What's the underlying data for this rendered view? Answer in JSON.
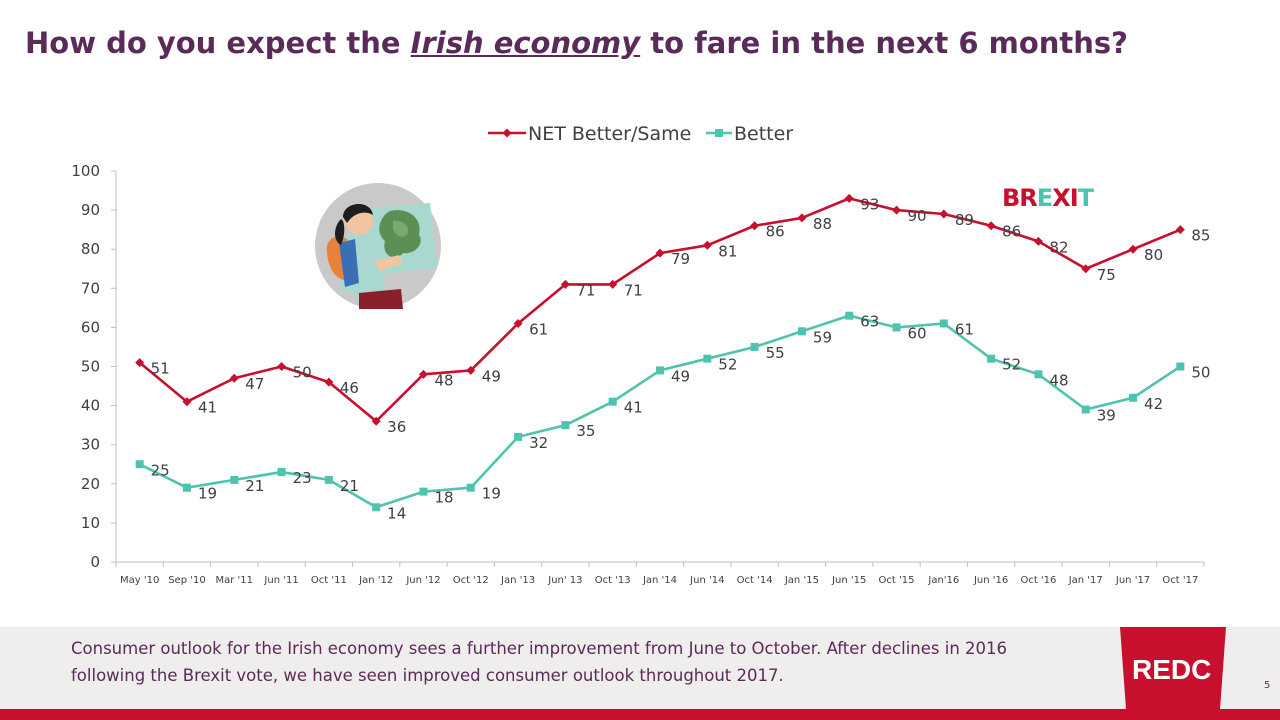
{
  "slide": {
    "title_before": "How do you expect the ",
    "title_emph": "Irish economy",
    "title_after": " to fare in the next 6 months?",
    "footer_text": "Consumer outlook for the Irish economy sees a further improvement from June to October. After declines in 2016 following the Brexit vote, we have seen improved consumer outlook throughout 2017.",
    "page_number": "5",
    "logo_text": "REDC",
    "brexit_letters": [
      "B",
      "R",
      "E",
      "X",
      "I",
      "T"
    ]
  },
  "colors": {
    "title": "#5a2a59",
    "net_series": "#c8102e",
    "better_series": "#4ec3ae",
    "axis": "#bfbfbf",
    "brand_red": "#c8102e",
    "footer_bg": "#efeeec",
    "brexit": [
      "#c8102e",
      "#c8102e",
      "#4ec3ae",
      "#c8102e",
      "#c8102e",
      "#4ec3ae"
    ]
  },
  "chart_data": {
    "type": "line",
    "categories": [
      "May '10",
      "Sep '10",
      "Mar '11",
      "Jun '11",
      "Oct '11",
      "Jan '12",
      "Jun '12",
      "Oct '12",
      "Jan '13",
      "Jun' 13",
      "Oct '13",
      "Jan '14",
      "Jun '14",
      "Oct '14",
      "Jan '15",
      "Jun '15",
      "Oct '15",
      "Jan'16",
      "Jun '16",
      "Oct '16",
      "Jan '17",
      "Jun '17",
      "Oct '17"
    ],
    "series": [
      {
        "name": "NET Better/Same",
        "marker": "diamond",
        "values": [
          51,
          41,
          47,
          50,
          46,
          36,
          48,
          49,
          61,
          71,
          71,
          79,
          81,
          86,
          88,
          93,
          90,
          89,
          86,
          82,
          75,
          80,
          85
        ]
      },
      {
        "name": "Better",
        "marker": "square",
        "values": [
          25,
          19,
          21,
          23,
          21,
          14,
          18,
          19,
          32,
          35,
          41,
          49,
          52,
          55,
          59,
          63,
          60,
          61,
          52,
          48,
          39,
          42,
          50
        ]
      }
    ],
    "ylim": [
      0,
      100
    ],
    "yticks": [
      0,
      10,
      20,
      30,
      40,
      50,
      60,
      70,
      80,
      90,
      100
    ],
    "grid": false,
    "legend": "top-center",
    "data_labels": true
  }
}
